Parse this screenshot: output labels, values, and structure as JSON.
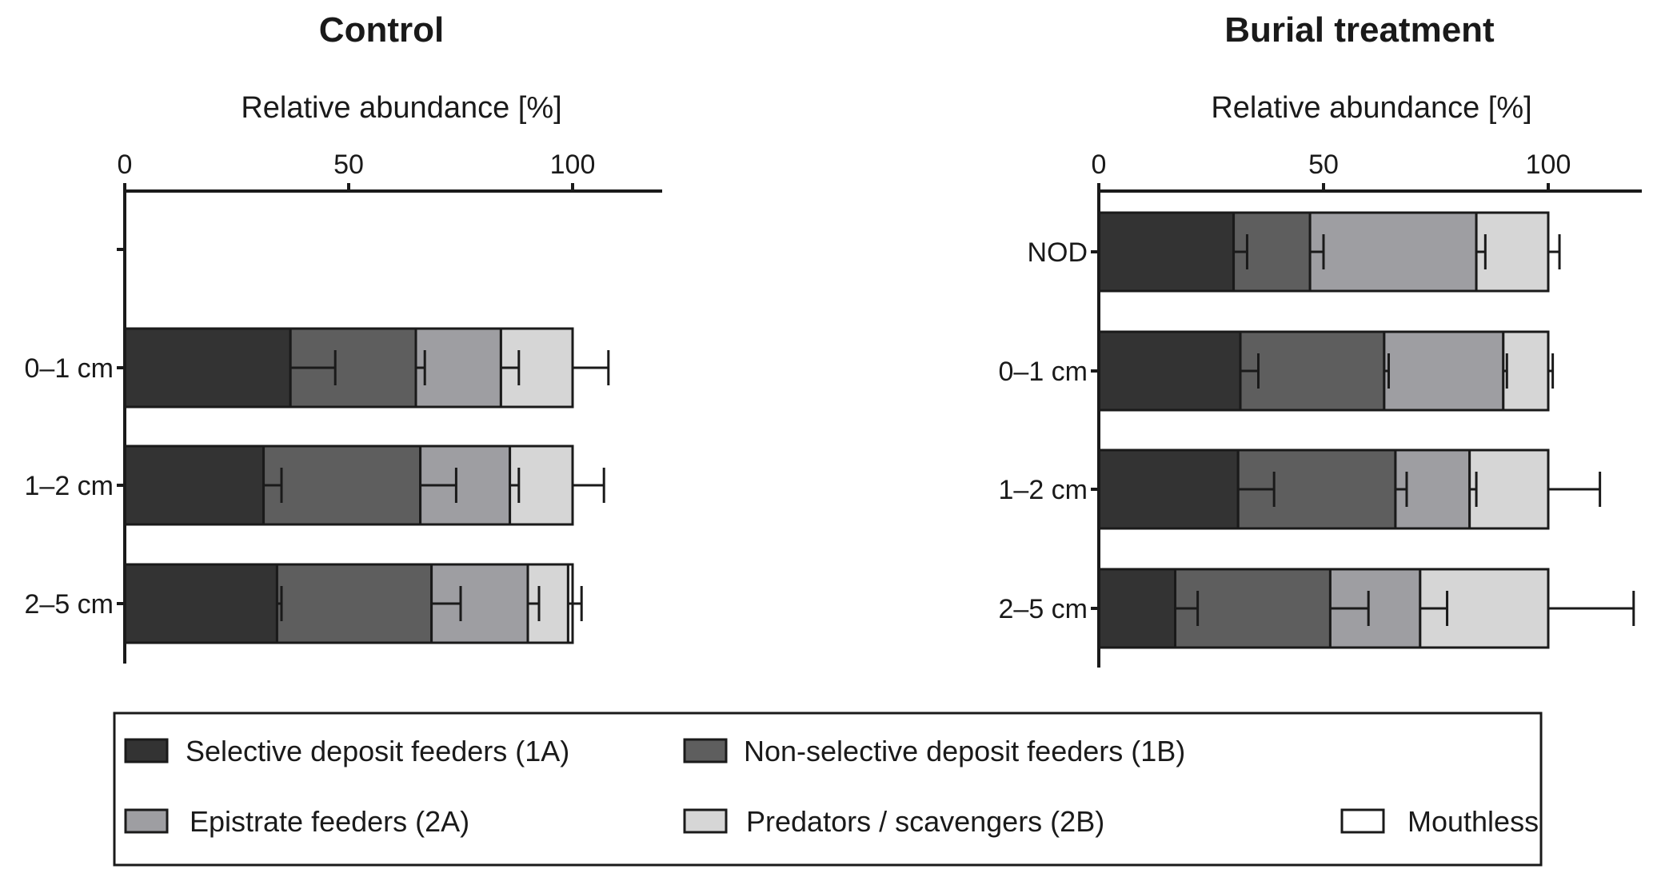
{
  "colors": {
    "1A": "#333333",
    "1B": "#5e5e5e",
    "2A": "#9e9ea2",
    "2B": "#d6d6d6",
    "mouthless": "#ffffff"
  },
  "legend": {
    "items": [
      {
        "key": "1A",
        "label": "Selective deposit feeders (1A)"
      },
      {
        "key": "1B",
        "label": "Non-selective deposit feeders (1B)"
      },
      {
        "key": "2A",
        "label": "Epistrate feeders (2A)"
      },
      {
        "key": "2B",
        "label": "Predators / scavengers (2B)"
      },
      {
        "key": "mouthless",
        "label": "Mouthless"
      }
    ]
  },
  "chart_data": [
    {
      "type": "bar",
      "stacked": true,
      "orientation": "horizontal",
      "title": "Control",
      "xlabel": "Relative abundance [%]",
      "xlim": [
        0,
        120
      ],
      "xticks": [
        0,
        50,
        100
      ],
      "categories": [
        "",
        "0–1 cm",
        "1–2 cm",
        "2–5 cm"
      ],
      "series": [
        {
          "name": "Selective deposit feeders (1A)",
          "key": "1A",
          "values": [
            null,
            37,
            31,
            34
          ],
          "err": [
            null,
            10,
            4,
            1
          ]
        },
        {
          "name": "Non-selective deposit feeders (1B)",
          "key": "1B",
          "values": [
            null,
            28,
            35,
            34.5
          ],
          "err": [
            null,
            2,
            8,
            6.5
          ]
        },
        {
          "name": "Epistrate feeders (2A)",
          "key": "2A",
          "values": [
            null,
            19,
            20,
            21.5
          ],
          "err": [
            null,
            4,
            2,
            2.5
          ]
        },
        {
          "name": "Predators / scavengers (2B)",
          "key": "2B",
          "values": [
            null,
            16,
            14,
            9
          ],
          "err": [
            null,
            8,
            7,
            1
          ]
        },
        {
          "name": "Mouthless",
          "key": "mouthless",
          "values": [
            null,
            0,
            0,
            1
          ],
          "err": [
            null,
            0,
            0,
            2
          ]
        }
      ]
    },
    {
      "type": "bar",
      "stacked": true,
      "orientation": "horizontal",
      "title": "Burial treatment",
      "xlabel": "Relative abundance [%]",
      "xlim": [
        0,
        120
      ],
      "xticks": [
        0,
        50,
        100
      ],
      "categories": [
        "NOD",
        "0–1 cm",
        "1–2 cm",
        "2–5 cm"
      ],
      "series": [
        {
          "name": "Selective deposit feeders (1A)",
          "key": "1A",
          "values": [
            30,
            31.5,
            31,
            17
          ],
          "err": [
            3,
            4,
            8,
            5
          ]
        },
        {
          "name": "Non-selective deposit feeders (1B)",
          "key": "1B",
          "values": [
            17,
            32,
            35,
            34.5
          ],
          "err": [
            3,
            1,
            2.5,
            8.5
          ]
        },
        {
          "name": "Epistrate feeders (2A)",
          "key": "2A",
          "values": [
            37,
            26.5,
            16.5,
            20
          ],
          "err": [
            2,
            0.8,
            1.5,
            6
          ]
        },
        {
          "name": "Predators / scavengers (2B)",
          "key": "2B",
          "values": [
            16,
            10,
            17.5,
            28.5
          ],
          "err": [
            2.5,
            1,
            11.5,
            19
          ]
        },
        {
          "name": "Mouthless",
          "key": "mouthless",
          "values": [
            0,
            0,
            0,
            0
          ],
          "err": [
            0,
            0,
            0,
            0
          ]
        }
      ]
    }
  ]
}
